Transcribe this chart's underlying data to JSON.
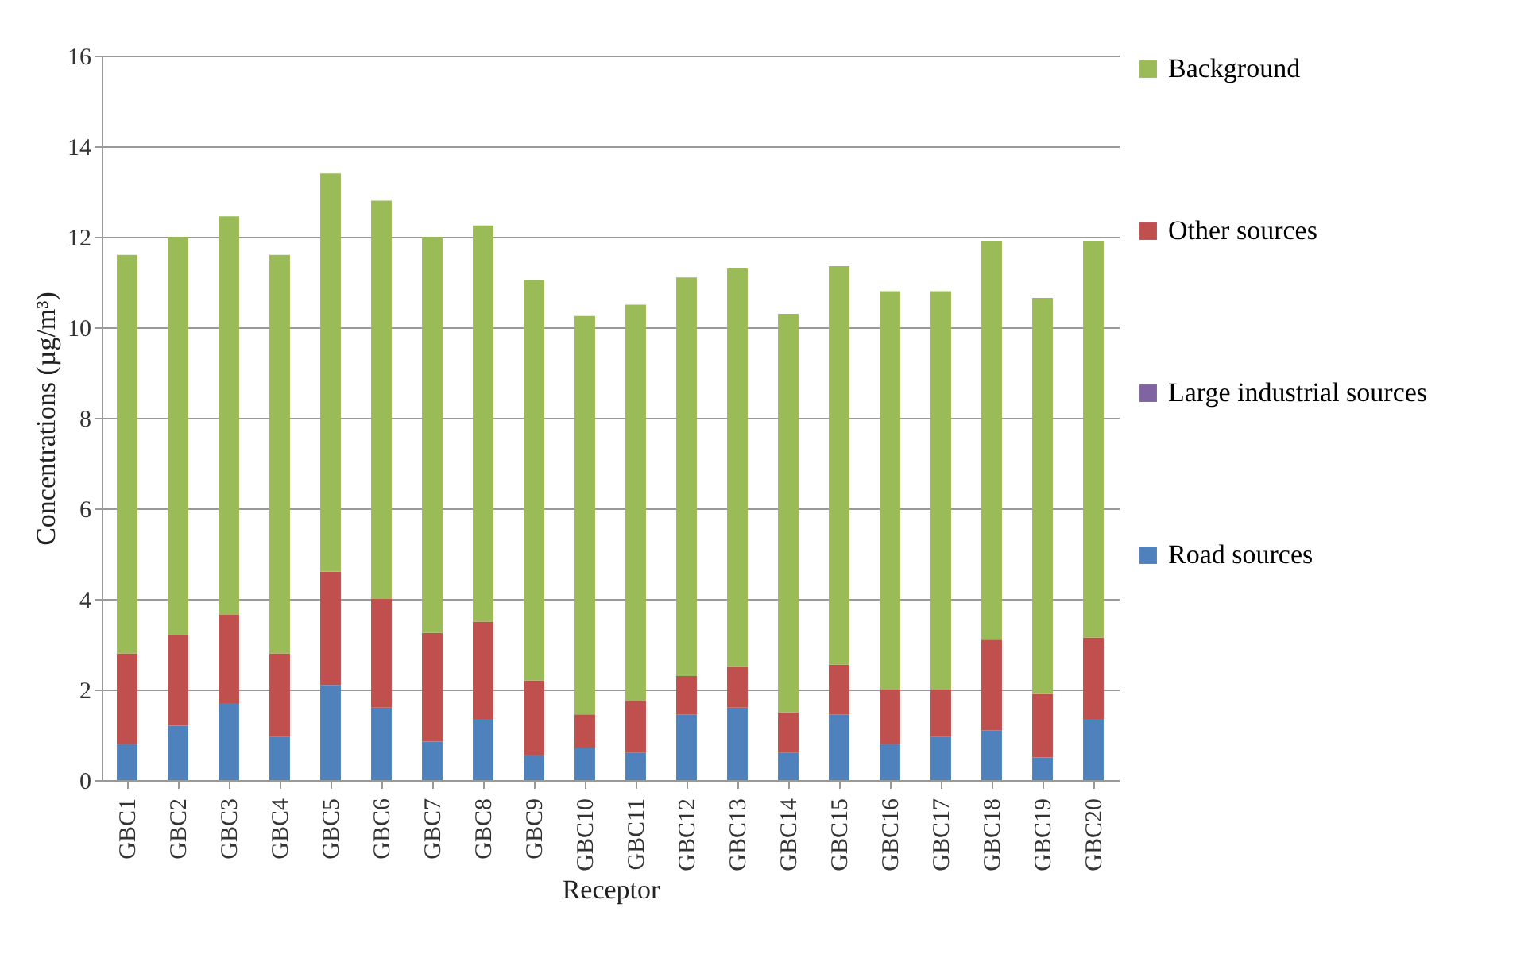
{
  "chart_data": {
    "type": "bar",
    "stacked": true,
    "xlabel": "Receptor",
    "ylabel": "Concentrations (µg/m³)",
    "categories": [
      "GBC1",
      "GBC2",
      "GBC3",
      "GBC4",
      "GBC5",
      "GBC6",
      "GBC7",
      "GBC8",
      "GBC9",
      "GBC10",
      "GBC11",
      "GBC12",
      "GBC13",
      "GBC14",
      "GBC15",
      "GBC16",
      "GBC17",
      "GBC18",
      "GBC19",
      "GBC20"
    ],
    "series": [
      {
        "name": "Road sources",
        "color": "#4f81bd",
        "values": [
          0.8,
          1.2,
          1.7,
          0.95,
          2.1,
          1.6,
          0.85,
          1.35,
          0.55,
          0.7,
          0.6,
          1.45,
          1.6,
          0.6,
          1.45,
          0.8,
          0.95,
          1.1,
          0.5,
          1.35
        ]
      },
      {
        "name": "Large industrial sources",
        "color": "#8064a2",
        "values": [
          0,
          0,
          0,
          0,
          0,
          0,
          0,
          0,
          0,
          0,
          0,
          0,
          0,
          0,
          0,
          0,
          0,
          0,
          0,
          0
        ]
      },
      {
        "name": "Other sources",
        "color": "#c0504d",
        "values": [
          2.0,
          2.0,
          1.95,
          1.85,
          2.5,
          2.4,
          2.4,
          2.15,
          1.65,
          0.75,
          1.15,
          0.85,
          0.9,
          0.9,
          1.1,
          1.2,
          1.05,
          2.0,
          1.4,
          1.8
        ]
      },
      {
        "name": "Background",
        "color": "#9bbb59",
        "values": [
          8.8,
          8.8,
          8.8,
          8.8,
          8.8,
          8.8,
          8.75,
          8.75,
          8.85,
          8.8,
          8.75,
          8.8,
          8.8,
          8.8,
          8.8,
          8.8,
          8.8,
          8.8,
          8.75,
          8.75
        ]
      }
    ],
    "ylim": [
      0,
      16
    ],
    "yticks": [
      0,
      2,
      4,
      6,
      8,
      10,
      12,
      14,
      16
    ],
    "grid": "y",
    "legend": "right"
  }
}
